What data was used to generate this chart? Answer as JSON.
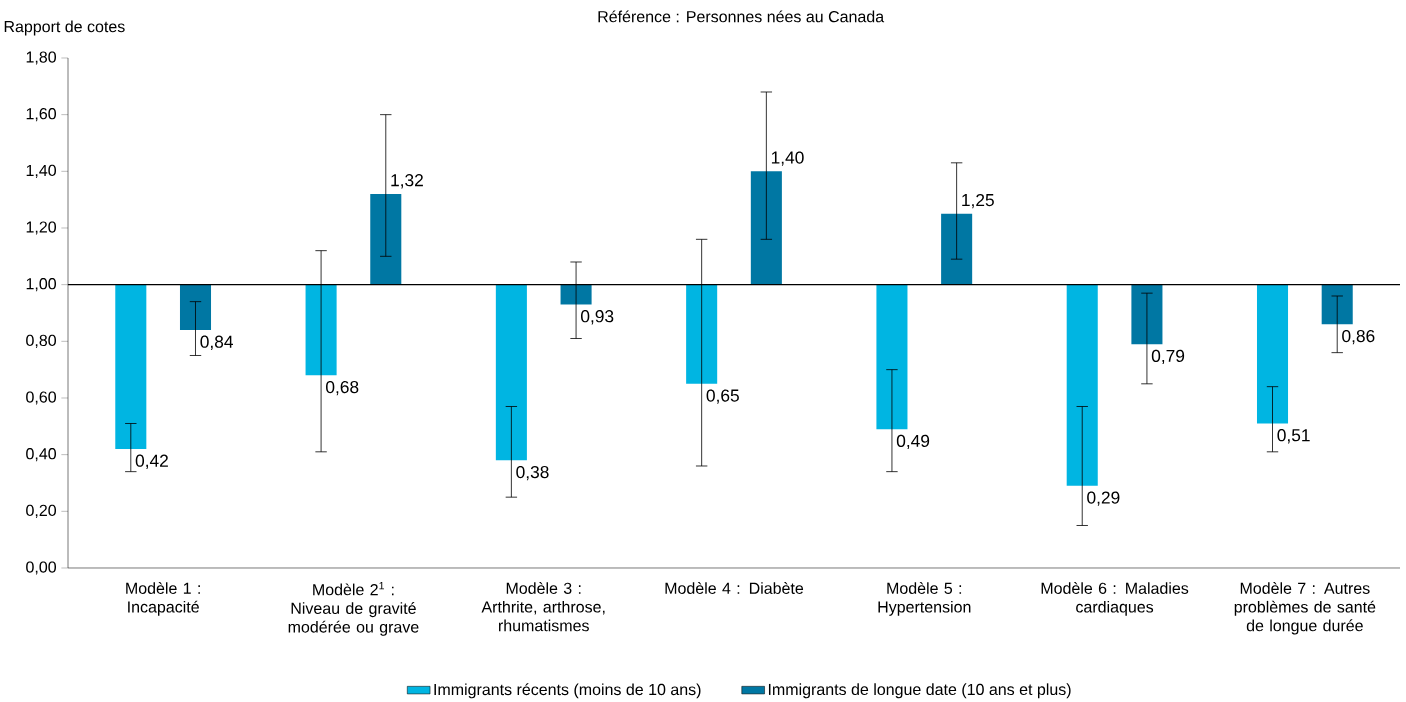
{
  "chart_data": {
    "type": "bar",
    "title": "Référence : Personnes nées au Canada",
    "ylabel": "Rapport de cotes",
    "categories": [
      "Modèle 1 : Incapacité",
      "Modèle 2$^{1}$ : Niveau de gravité modérée ou grave",
      "Modèle 3 : Arthrite, arthrose, rhumatismes",
      "Modèle 4 : Diabète",
      "Modèle 5 : Hypertension",
      "Modèle 6 : Maladies cardiaques",
      "Modèle 7 : Autres problèmes de santé de longue durée"
    ],
    "series": [
      {
        "name": "Immigrants récents (moins de 10 ans)",
        "color": "#00b5e2",
        "base": [
          1,
          1,
          1,
          1,
          1,
          1,
          1
        ],
        "values": [
          -0.58,
          -0.32,
          -0.62,
          -0.35,
          -0.51,
          -0.71,
          -0.49
        ],
        "value_labels": [
          "0,42",
          "0,68",
          "0,38",
          "0,65",
          "0,49",
          "0,29",
          "0,51"
        ],
        "errors": [
          [
            0.34,
            0.51
          ],
          [
            0.41,
            1.12
          ],
          [
            0.25,
            0.57
          ],
          [
            0.36,
            1.16
          ],
          [
            0.34,
            0.7
          ],
          [
            0.15,
            0.57
          ],
          [
            0.41,
            0.64
          ]
        ]
      },
      {
        "name": "Immigrants de longue date (10 ans et plus)",
        "color": "#0077a3",
        "base": [
          1,
          1,
          1,
          1,
          1,
          1,
          1
        ],
        "values": [
          -0.16,
          0.32,
          -0.07,
          0.4,
          0.25,
          -0.21,
          -0.14
        ],
        "value_labels": [
          "0,84",
          "1,32",
          "0,93",
          "1,40",
          "1,25",
          "0,79",
          "0,86"
        ],
        "errors": [
          [
            0.75,
            0.94
          ],
          [
            1.1,
            1.6
          ],
          [
            0.81,
            1.08
          ],
          [
            1.16,
            1.68
          ],
          [
            1.09,
            1.43
          ],
          [
            0.65,
            0.97
          ],
          [
            0.76,
            0.96
          ]
        ]
      }
    ],
    "ref_lines": [
      {
        "axis": "y",
        "value": 1,
        "color": "#000000"
      }
    ],
    "ylim": [
      0,
      1.8
    ],
    "yticks": [
      {
        "value": 0,
        "label": "0,00"
      },
      {
        "value": 0.2,
        "label": "0,20"
      },
      {
        "value": 0.4,
        "label": "0,40"
      },
      {
        "value": 0.6,
        "label": "0,60"
      },
      {
        "value": 0.8,
        "label": "0,80"
      },
      {
        "value": 1,
        "label": "1,00"
      },
      {
        "value": 1.2,
        "label": "1,20"
      },
      {
        "value": 1.4,
        "label": "1,40"
      },
      {
        "value": 1.6,
        "label": "1,60"
      },
      {
        "value": 1.8,
        "label": "1,80"
      }
    ],
    "legend": "bottom"
  }
}
